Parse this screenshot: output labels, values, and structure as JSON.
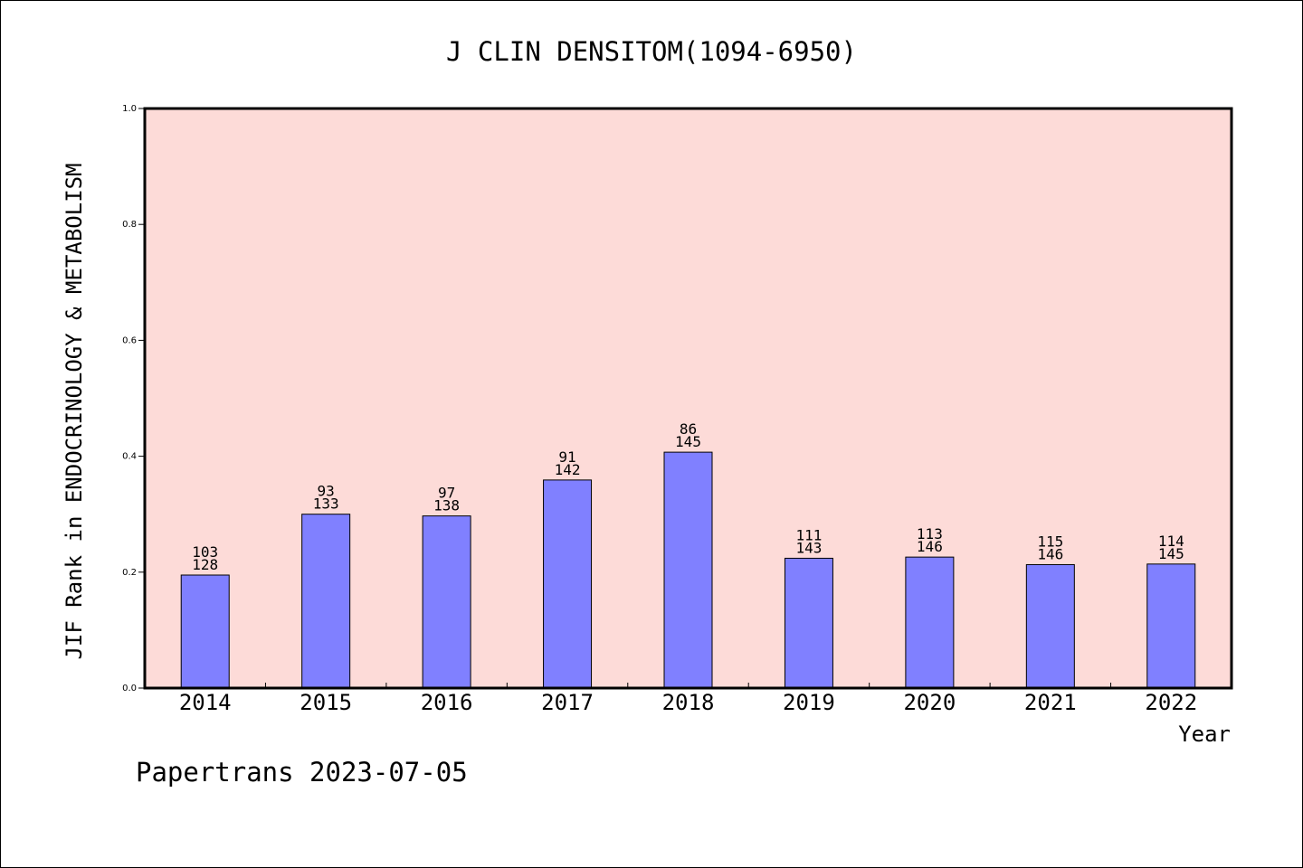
{
  "chart_data": {
    "type": "bar",
    "title": "J CLIN DENSITOM(1094-6950)",
    "xlabel": "Year",
    "ylabel": "JIF Rank in ENDOCRINOLOGY & METABOLISM",
    "ylim": [
      0,
      1.0
    ],
    "yticks": [
      "0.0",
      "0.2",
      "0.4",
      "0.6",
      "0.8",
      "1.0"
    ],
    "categories": [
      "2014",
      "2015",
      "2016",
      "2017",
      "2018",
      "2019",
      "2020",
      "2021",
      "2022"
    ],
    "values": [
      0.195,
      0.3,
      0.297,
      0.359,
      0.407,
      0.224,
      0.226,
      0.213,
      0.214
    ],
    "rank": [
      103,
      93,
      97,
      91,
      86,
      111,
      113,
      115,
      114
    ],
    "total": [
      128,
      133,
      138,
      142,
      145,
      143,
      146,
      146,
      145
    ],
    "grid": false,
    "colors": {
      "plot_bg": "#fddbd8",
      "bar": "#8080ff",
      "axis": "#000000"
    }
  },
  "footer": {
    "credit": "Papertrans 2023-07-05"
  }
}
